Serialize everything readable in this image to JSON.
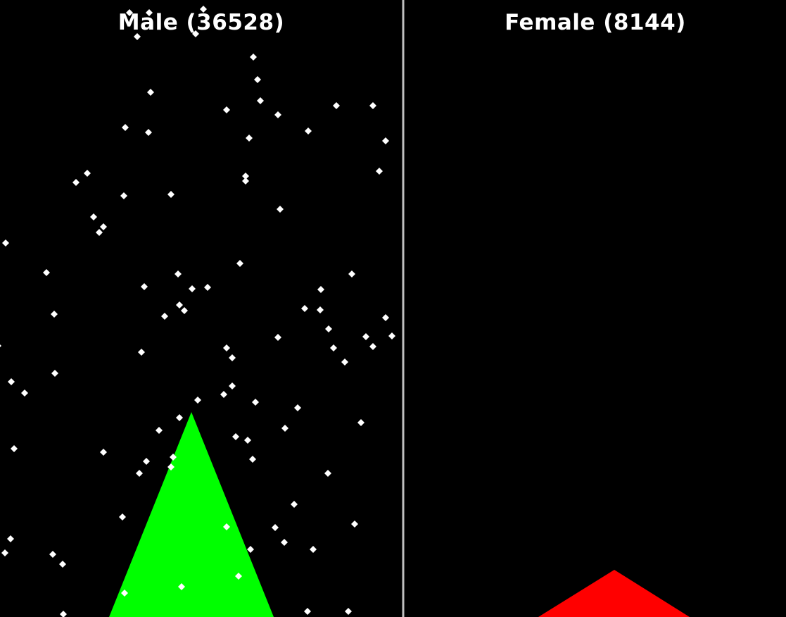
{
  "chart_data": {
    "type": "scatter",
    "background": "#000000",
    "divider_color": "#bfbfbf",
    "point_color": "#ffffff",
    "panels": [
      {
        "title": "Male (36528)",
        "triangle_color": "#00ff00",
        "points": [
          [
            184,
            18
          ],
          [
            212,
            18
          ],
          [
            289,
            13
          ],
          [
            195,
            52
          ],
          [
            278,
            48
          ],
          [
            360,
            81
          ],
          [
            366,
            113
          ],
          [
            214,
            131
          ],
          [
            370,
            143
          ],
          [
            322,
            156
          ],
          [
            395,
            163
          ],
          [
            478,
            150
          ],
          [
            530,
            150
          ],
          [
            178,
            181
          ],
          [
            211,
            188
          ],
          [
            438,
            186
          ],
          [
            354,
            196
          ],
          [
            548,
            200
          ],
          [
            124,
            246
          ],
          [
            349,
            250
          ],
          [
            349,
            257
          ],
          [
            108,
            259
          ],
          [
            539,
            243
          ],
          [
            176,
            278
          ],
          [
            243,
            276
          ],
          [
            398,
            297
          ],
          [
            133,
            308
          ],
          [
            147,
            322
          ],
          [
            141,
            330
          ],
          [
            8,
            345
          ],
          [
            341,
            374
          ],
          [
            66,
            387
          ],
          [
            500,
            389
          ],
          [
            253,
            389
          ],
          [
            205,
            407
          ],
          [
            273,
            410
          ],
          [
            295,
            408
          ],
          [
            456,
            411
          ],
          [
            255,
            433
          ],
          [
            262,
            441
          ],
          [
            234,
            449
          ],
          [
            433,
            438
          ],
          [
            455,
            440
          ],
          [
            77,
            446
          ],
          [
            548,
            451
          ],
          [
            467,
            467
          ],
          [
            557,
            477
          ],
          [
            520,
            478
          ],
          [
            395,
            479
          ],
          [
            474,
            494
          ],
          [
            530,
            492
          ],
          [
            -3,
            491
          ],
          [
            322,
            494
          ],
          [
            201,
            500
          ],
          [
            330,
            508
          ],
          [
            490,
            514
          ],
          [
            78,
            530
          ],
          [
            16,
            542
          ],
          [
            35,
            558
          ],
          [
            330,
            548
          ],
          [
            318,
            560
          ],
          [
            281,
            568
          ],
          [
            363,
            571
          ],
          [
            423,
            579
          ],
          [
            255,
            593
          ],
          [
            405,
            608
          ],
          [
            513,
            600
          ],
          [
            226,
            611
          ],
          [
            335,
            620
          ],
          [
            352,
            625
          ],
          [
            20,
            637
          ],
          [
            147,
            642
          ],
          [
            246,
            649
          ],
          [
            208,
            655
          ],
          [
            243,
            663
          ],
          [
            359,
            652
          ],
          [
            198,
            672
          ],
          [
            466,
            672
          ],
          [
            418,
            716
          ],
          [
            174,
            734
          ],
          [
            504,
            744
          ],
          [
            322,
            748
          ],
          [
            391,
            749
          ],
          [
            15,
            765
          ],
          [
            404,
            770
          ],
          [
            356,
            780
          ],
          [
            445,
            780
          ],
          [
            7,
            785
          ],
          [
            75,
            787
          ],
          [
            89,
            801
          ],
          [
            339,
            818
          ],
          [
            258,
            833
          ],
          [
            177,
            842
          ],
          [
            90,
            872
          ],
          [
            437,
            868
          ],
          [
            495,
            868
          ]
        ]
      },
      {
        "title": "Female (8144)",
        "triangle_color": "#ff0000",
        "points": []
      }
    ]
  }
}
